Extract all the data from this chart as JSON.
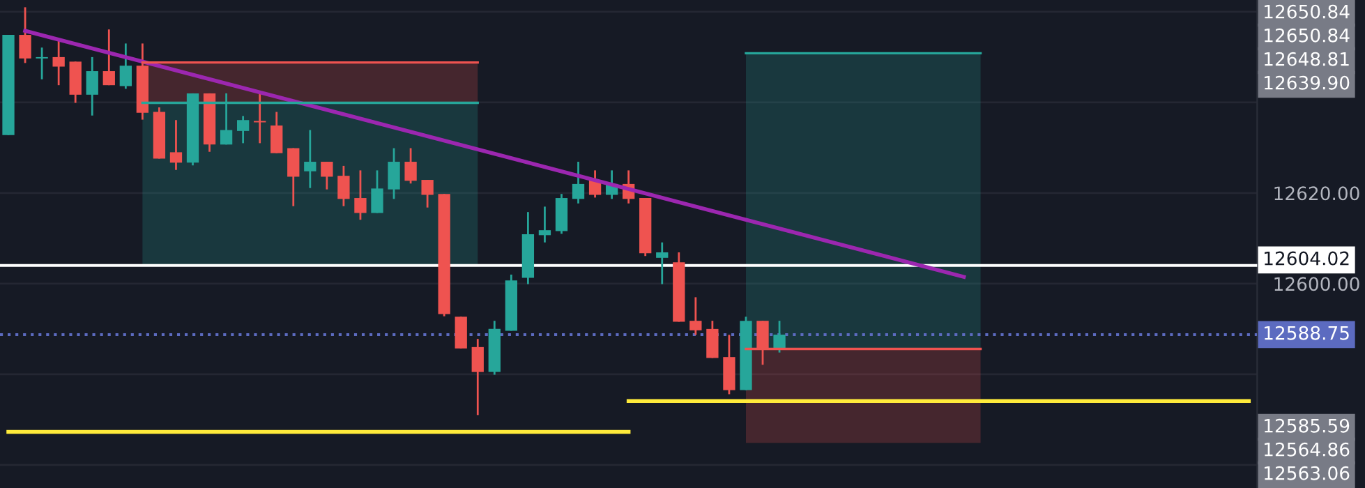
{
  "chart_data": {
    "type": "candlestick",
    "categories": [
      null,
      null,
      null,
      null,
      null,
      null,
      null,
      null,
      null,
      null,
      null,
      null,
      null,
      null,
      null,
      null,
      null,
      null,
      null,
      null,
      null,
      null,
      null,
      null,
      null,
      null,
      null,
      null,
      null,
      null,
      null,
      null,
      null,
      null,
      null,
      null,
      null,
      null,
      null,
      null,
      null,
      null,
      null,
      null,
      null,
      null,
      null,
      null,
      null,
      null,
      null,
      null,
      null,
      null,
      null,
      null,
      null,
      null,
      null,
      null,
      null,
      null,
      null,
      null,
      null,
      null,
      null,
      null,
      null,
      null,
      null,
      null,
      null,
      null,
      null
    ],
    "ohlc": [
      [
        12632.8,
        12654.9,
        12632.8,
        12654.9
      ],
      [
        12654.9,
        12661.0,
        12648.7,
        12649.7
      ],
      [
        12649.7,
        12652.1,
        12645.1,
        12650.0
      ],
      [
        12650.0,
        12654.1,
        12643.8,
        12647.9
      ],
      [
        12649.0,
        12649.0,
        12639.9,
        12641.7
      ],
      [
        12641.7,
        12650.0,
        12637.1,
        12646.9
      ],
      [
        12646.9,
        12656.1,
        12643.8,
        12643.8
      ],
      [
        12643.6,
        12653.0,
        12643.0,
        12648.1
      ],
      [
        12648.1,
        12653.0,
        12636.2,
        12637.7
      ],
      [
        12637.9,
        12638.9,
        12627.6,
        12627.6
      ],
      [
        12629.0,
        12636.1,
        12625.1,
        12626.7
      ],
      [
        12626.7,
        12642.0,
        12626.1,
        12642.0
      ],
      [
        12642.0,
        12642.0,
        12629.1,
        12630.7
      ],
      [
        12630.7,
        12642.0,
        12630.7,
        12633.9
      ],
      [
        12633.7,
        12637.0,
        12631.0,
        12636.1
      ],
      [
        12635.9,
        12642.0,
        12631.0,
        12635.6
      ],
      [
        12634.9,
        12637.9,
        12628.8,
        12628.8
      ],
      [
        12629.9,
        12629.9,
        12617.1,
        12623.6
      ],
      [
        12624.8,
        12633.9,
        12621.1,
        12626.9
      ],
      [
        12626.9,
        12626.9,
        12620.8,
        12623.6
      ],
      [
        12623.8,
        12626.0,
        12617.1,
        12618.7
      ],
      [
        12618.9,
        12625.0,
        12614.1,
        12615.6
      ],
      [
        12615.6,
        12625.0,
        12615.6,
        12621.0
      ],
      [
        12620.8,
        12629.9,
        12618.7,
        12626.9
      ],
      [
        12626.9,
        12629.9,
        12622.1,
        12622.7
      ],
      [
        12622.9,
        12622.9,
        12616.8,
        12619.6
      ],
      [
        12619.8,
        12619.8,
        12592.8,
        12593.3
      ],
      [
        12592.7,
        12592.7,
        12585.7,
        12585.7
      ],
      [
        12586.0,
        12587.8,
        12571.0,
        12580.5
      ],
      [
        12580.5,
        12591.8,
        12579.9,
        12590.0
      ],
      [
        12589.6,
        12602.0,
        12589.6,
        12600.7
      ],
      [
        12601.3,
        12615.8,
        12599.9,
        12610.9
      ],
      [
        12610.7,
        12617.0,
        12609.1,
        12611.8
      ],
      [
        12611.6,
        12619.8,
        12611.0,
        12618.9
      ],
      [
        12618.7,
        12626.9,
        12617.7,
        12622.0
      ],
      [
        12622.9,
        12625.0,
        12619.0,
        12619.6
      ],
      [
        12619.6,
        12625.0,
        12618.7,
        12622.0
      ],
      [
        12622.0,
        12625.0,
        12617.7,
        12618.7
      ],
      [
        12618.9,
        12618.9,
        12606.1,
        12606.7
      ],
      [
        12605.7,
        12609.1,
        12599.9,
        12606.9
      ],
      [
        12604.7,
        12606.9,
        12591.6,
        12591.6
      ],
      [
        12591.8,
        12597.0,
        12588.7,
        12589.7
      ],
      [
        12590.0,
        12591.8,
        12583.6,
        12583.6
      ],
      [
        12583.8,
        12588.7,
        12575.6,
        12576.5
      ],
      [
        12576.5,
        12592.7,
        12576.5,
        12591.8
      ],
      [
        12591.8,
        12591.8,
        12582.1,
        12585.7
      ],
      [
        12585.6,
        12591.8,
        12584.8,
        12588.75
      ],
      null,
      null,
      null,
      null,
      null,
      null,
      null,
      null,
      null,
      null,
      null,
      null,
      null,
      null,
      null,
      null,
      null,
      null,
      null,
      null,
      null,
      null,
      null,
      null,
      null,
      null,
      null,
      null
    ],
    "series": [
      {
        "type": "line",
        "color": "#9c27b0",
        "values": [
          null,
          12655.8,
          null,
          null,
          null,
          null,
          null,
          null,
          null,
          null,
          null,
          null,
          null,
          null,
          null,
          null,
          null,
          null,
          null,
          null,
          null,
          null,
          null,
          null,
          null,
          null,
          null,
          null,
          null,
          null,
          null,
          null,
          null,
          null,
          null,
          null,
          null,
          null,
          null,
          null,
          null,
          null,
          null,
          null,
          null,
          null,
          null,
          null,
          null,
          null,
          null,
          null,
          null,
          null,
          null,
          null,
          null,
          12601.5,
          null,
          null,
          null,
          null,
          null,
          null,
          null,
          null,
          null,
          null,
          null,
          null,
          null,
          null,
          null,
          null,
          null
        ]
      },
      {
        "type": "line",
        "color": "#ffeb3b",
        "values": [
          12567.3,
          null,
          null,
          null,
          null,
          null,
          null,
          null,
          null,
          null,
          null,
          null,
          null,
          null,
          null,
          null,
          null,
          null,
          null,
          null,
          null,
          null,
          null,
          null,
          null,
          null,
          null,
          null,
          null,
          null,
          null,
          null,
          null,
          null,
          null,
          null,
          null,
          12567.3,
          null,
          null,
          null,
          null,
          null,
          null,
          null,
          null,
          null,
          null,
          null,
          null,
          null,
          null,
          null,
          null,
          null,
          null,
          null,
          null,
          null,
          null,
          null,
          null,
          null,
          null,
          null,
          null,
          null,
          null,
          null,
          null,
          null,
          null,
          null,
          null,
          null
        ]
      },
      {
        "type": "line",
        "color": "#ffeb3b",
        "values": [
          null,
          null,
          null,
          null,
          null,
          null,
          null,
          null,
          null,
          null,
          null,
          null,
          null,
          null,
          null,
          null,
          null,
          null,
          null,
          null,
          null,
          null,
          null,
          null,
          null,
          null,
          null,
          null,
          null,
          null,
          null,
          null,
          null,
          null,
          null,
          null,
          null,
          12574.1,
          null,
          null,
          null,
          null,
          null,
          null,
          null,
          null,
          null,
          null,
          null,
          null,
          null,
          null,
          null,
          null,
          null,
          null,
          null,
          null,
          null,
          null,
          null,
          null,
          null,
          null,
          null,
          null,
          null,
          null,
          null,
          null,
          null,
          null,
          null,
          null,
          12574.1
        ]
      },
      {
        "type": "line",
        "color": "#ef5350",
        "values": [
          null,
          null,
          null,
          null,
          null,
          null,
          null,
          null,
          12648.81,
          null,
          null,
          null,
          null,
          null,
          null,
          null,
          null,
          null,
          null,
          null,
          null,
          null,
          null,
          null,
          null,
          null,
          null,
          null,
          12648.81,
          null,
          null,
          null,
          null,
          null,
          null,
          null,
          null,
          null,
          null,
          null,
          null,
          null,
          null,
          null,
          null,
          null,
          null,
          null,
          null,
          null,
          null,
          null,
          null,
          null,
          null,
          null,
          null,
          null,
          null,
          null,
          null,
          null,
          null,
          null,
          null,
          null,
          null,
          null,
          null,
          null,
          null,
          null,
          null,
          null,
          null
        ],
        "lower": [
          null,
          null,
          null,
          null,
          null,
          null,
          null,
          null,
          12639.9,
          null,
          null,
          null,
          null,
          null,
          null,
          null,
          null,
          null,
          null,
          null,
          null,
          null,
          null,
          null,
          null,
          null,
          null,
          null,
          12639.9,
          null,
          null,
          null,
          null,
          null,
          null,
          null,
          null,
          null,
          null,
          null,
          null,
          null,
          null,
          null,
          null,
          null,
          null,
          null,
          null,
          null,
          null,
          null,
          null,
          null,
          null,
          null,
          null,
          null,
          null,
          null,
          null,
          null,
          null,
          null,
          null,
          null,
          null,
          null,
          null,
          null,
          null,
          null,
          null,
          null,
          null
        ],
        "upper": [
          null,
          null,
          null,
          null,
          null,
          null,
          null,
          null,
          12648.81,
          null,
          null,
          null,
          null,
          null,
          null,
          null,
          null,
          null,
          null,
          null,
          null,
          null,
          null,
          null,
          null,
          null,
          null,
          null,
          12648.81,
          null,
          null,
          null,
          null,
          null,
          null,
          null,
          null,
          null,
          null,
          null,
          null,
          null,
          null,
          null,
          null,
          null,
          null,
          null,
          null,
          null,
          null,
          null,
          null,
          null,
          null,
          null,
          null,
          null,
          null,
          null,
          null,
          null,
          null,
          null,
          null,
          null,
          null,
          null,
          null,
          null,
          null,
          null,
          null,
          null,
          null
        ]
      },
      {
        "type": "line",
        "color": "#26a69a",
        "values": [
          null,
          null,
          null,
          null,
          null,
          null,
          null,
          null,
          12639.9,
          null,
          null,
          null,
          null,
          null,
          null,
          null,
          null,
          null,
          null,
          null,
          null,
          null,
          null,
          null,
          null,
          null,
          null,
          null,
          12639.9,
          null,
          null,
          null,
          null,
          null,
          null,
          null,
          null,
          null,
          null,
          null,
          null,
          null,
          null,
          null,
          null,
          null,
          null,
          null,
          null,
          null,
          null,
          null,
          null,
          null,
          null,
          null,
          null,
          null,
          null,
          null,
          null,
          null,
          null,
          null,
          null,
          null,
          null,
          null,
          null,
          null,
          null,
          null,
          null,
          null,
          null
        ],
        "lower": [
          null,
          null,
          null,
          null,
          null,
          null,
          null,
          null,
          12604.02,
          null,
          null,
          null,
          null,
          null,
          null,
          null,
          null,
          null,
          null,
          null,
          null,
          null,
          null,
          null,
          null,
          null,
          null,
          null,
          12604.02,
          null,
          null,
          null,
          null,
          null,
          null,
          null,
          null,
          null,
          null,
          null,
          null,
          null,
          null,
          null,
          null,
          null,
          null,
          null,
          null,
          null,
          null,
          null,
          null,
          null,
          null,
          null,
          null,
          null,
          null,
          null,
          null,
          null,
          null,
          null,
          null,
          null,
          null,
          null,
          null,
          null,
          null,
          null,
          null,
          null,
          null
        ],
        "upper": [
          null,
          null,
          null,
          null,
          null,
          null,
          null,
          null,
          12639.9,
          null,
          null,
          null,
          null,
          null,
          null,
          null,
          null,
          null,
          null,
          null,
          null,
          null,
          null,
          null,
          null,
          null,
          null,
          null,
          12639.9,
          null,
          null,
          null,
          null,
          null,
          null,
          null,
          null,
          null,
          null,
          null,
          null,
          null,
          null,
          null,
          null,
          null,
          null,
          null,
          null,
          null,
          null,
          null,
          null,
          null,
          null,
          null,
          null,
          null,
          null,
          null,
          null,
          null,
          null,
          null,
          null,
          null,
          null,
          null,
          null,
          null,
          null,
          null,
          null,
          null,
          null
        ]
      },
      {
        "type": "line",
        "color": "#26a69a",
        "values": [
          null,
          null,
          null,
          null,
          null,
          null,
          null,
          null,
          null,
          null,
          null,
          null,
          null,
          null,
          null,
          null,
          null,
          null,
          null,
          null,
          null,
          null,
          null,
          null,
          null,
          null,
          null,
          null,
          null,
          null,
          null,
          null,
          null,
          null,
          null,
          null,
          null,
          null,
          null,
          null,
          null,
          null,
          null,
          null,
          12650.84,
          null,
          null,
          null,
          null,
          null,
          null,
          null,
          null,
          null,
          null,
          null,
          null,
          null,
          12650.84,
          null,
          null,
          null,
          null,
          null,
          null,
          null,
          null,
          null,
          null,
          null,
          null,
          null,
          null,
          null,
          null
        ],
        "lower": [
          null,
          null,
          null,
          null,
          null,
          null,
          null,
          null,
          null,
          null,
          null,
          null,
          null,
          null,
          null,
          null,
          null,
          null,
          null,
          null,
          null,
          null,
          null,
          null,
          null,
          null,
          null,
          null,
          null,
          null,
          null,
          null,
          null,
          null,
          null,
          null,
          null,
          null,
          null,
          null,
          null,
          null,
          null,
          null,
          12585.59,
          null,
          null,
          null,
          null,
          null,
          null,
          null,
          null,
          null,
          null,
          null,
          null,
          null,
          12585.59,
          null,
          null,
          null,
          null,
          null,
          null,
          null,
          null,
          null,
          null,
          null,
          null,
          null,
          null,
          null,
          null
        ],
        "upper": [
          null,
          null,
          null,
          null,
          null,
          null,
          null,
          null,
          null,
          null,
          null,
          null,
          null,
          null,
          null,
          null,
          null,
          null,
          null,
          null,
          null,
          null,
          null,
          null,
          null,
          null,
          null,
          null,
          null,
          null,
          null,
          null,
          null,
          null,
          null,
          null,
          null,
          null,
          null,
          null,
          null,
          null,
          null,
          null,
          12650.84,
          null,
          null,
          null,
          null,
          null,
          null,
          null,
          null,
          null,
          null,
          null,
          null,
          null,
          12650.84,
          null,
          null,
          null,
          null,
          null,
          null,
          null,
          null,
          null,
          null,
          null,
          null,
          null,
          null,
          null,
          null
        ]
      },
      {
        "type": "line",
        "color": "#ef5350",
        "values": [
          null,
          null,
          null,
          null,
          null,
          null,
          null,
          null,
          null,
          null,
          null,
          null,
          null,
          null,
          null,
          null,
          null,
          null,
          null,
          null,
          null,
          null,
          null,
          null,
          null,
          null,
          null,
          null,
          null,
          null,
          null,
          null,
          null,
          null,
          null,
          null,
          null,
          null,
          null,
          null,
          null,
          null,
          null,
          null,
          12585.59,
          null,
          null,
          null,
          null,
          null,
          null,
          null,
          null,
          null,
          null,
          null,
          null,
          null,
          12585.59,
          null,
          null,
          null,
          null,
          null,
          null,
          null,
          null,
          null,
          null,
          null,
          null,
          null,
          null,
          null,
          null
        ],
        "lower": [
          null,
          null,
          null,
          null,
          null,
          null,
          null,
          null,
          null,
          null,
          null,
          null,
          null,
          null,
          null,
          null,
          null,
          null,
          null,
          null,
          null,
          null,
          null,
          null,
          null,
          null,
          null,
          null,
          null,
          null,
          null,
          null,
          null,
          null,
          null,
          null,
          null,
          null,
          null,
          null,
          null,
          null,
          null,
          null,
          12564.86,
          null,
          null,
          null,
          null,
          null,
          null,
          null,
          null,
          null,
          null,
          null,
          null,
          null,
          12564.86,
          null,
          null,
          null,
          null,
          null,
          null,
          null,
          null,
          null,
          null,
          null,
          null,
          null,
          null,
          null,
          null
        ],
        "upper": [
          null,
          null,
          null,
          null,
          null,
          null,
          null,
          null,
          null,
          null,
          null,
          null,
          null,
          null,
          null,
          null,
          null,
          null,
          null,
          null,
          null,
          null,
          null,
          null,
          null,
          null,
          null,
          null,
          null,
          null,
          null,
          null,
          null,
          null,
          null,
          null,
          null,
          null,
          null,
          null,
          null,
          null,
          null,
          null,
          12585.59,
          null,
          null,
          null,
          null,
          null,
          null,
          null,
          null,
          null,
          null,
          null,
          null,
          null,
          12585.59,
          null,
          null,
          null,
          null,
          null,
          null,
          null,
          null,
          null,
          null,
          null,
          null,
          null,
          null,
          null,
          null
        ]
      }
    ],
    "ylim": [
      12554.9,
      12662.6
    ],
    "yticks": [
      {
        "value": 12660,
        "label": null
      },
      {
        "value": 12640,
        "label": null
      },
      {
        "value": 12620,
        "label": "12620.00"
      },
      {
        "value": 12600,
        "label": "12600.00"
      },
      {
        "value": 12580,
        "label": null
      },
      {
        "value": 12560,
        "label": null
      }
    ],
    "grid": "y",
    "tick_labels": "y",
    "ref_lines": [
      {
        "axis": "y",
        "value": 12604.02,
        "label": "12604.02",
        "color": "#ffffff",
        "line_style": "solid"
      },
      {
        "axis": "y",
        "value": 12588.75,
        "label": "12588.75",
        "color": "#5c6bc0",
        "line_style": "dotted"
      }
    ],
    "annotations": [
      "12650.84",
      "12650.84",
      "12648.81",
      "12639.90",
      "12585.59",
      "12564.86",
      "12563.06"
    ]
  }
}
